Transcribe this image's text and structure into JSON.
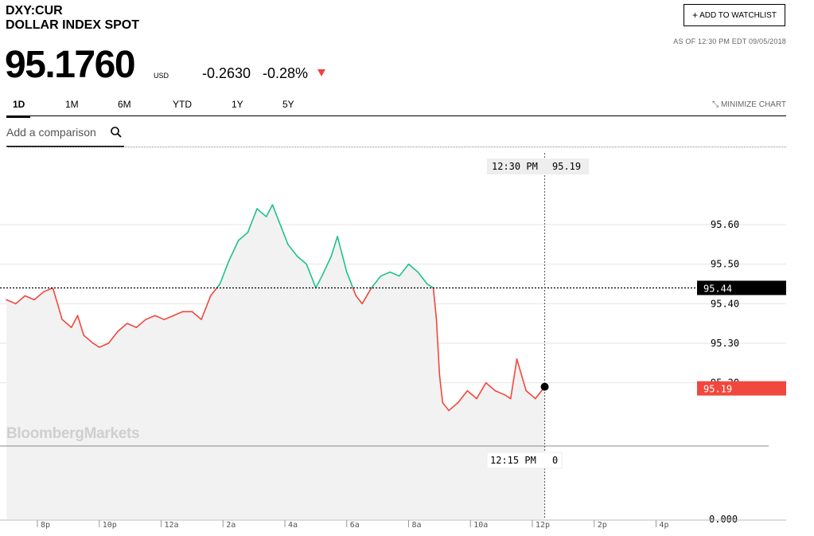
{
  "header": {
    "ticker": "DXY:CUR",
    "name": "DOLLAR INDEX SPOT",
    "watchlist_label": "ADD TO WATCHLIST",
    "as_of": "AS OF 12:30 PM EDT 09/05/2018",
    "price": "95.1760",
    "currency": "USD",
    "change": "-0.2630",
    "change_pct": "-0.28%"
  },
  "tabs": [
    {
      "label": "1D",
      "active": true
    },
    {
      "label": "1M",
      "active": false
    },
    {
      "label": "6M",
      "active": false
    },
    {
      "label": "YTD",
      "active": false
    },
    {
      "label": "1Y",
      "active": false
    },
    {
      "label": "5Y",
      "active": false
    }
  ],
  "minimize_label": "MINIMIZE CHART",
  "comparison_placeholder": "Add a comparison",
  "watermark": "BloombergMarkets",
  "colors": {
    "up": "#1fc28a",
    "down": "#f0483e",
    "area": "#f2f2f2"
  },
  "chart_data": {
    "type": "line",
    "previous_close": 95.44,
    "last_value": 95.19,
    "crosshair": {
      "time": "12:30 PM",
      "value": "95.19",
      "volume_time": "12:15 PM",
      "volume": "0"
    },
    "yticks": [
      95.6,
      95.5,
      95.4,
      95.3
    ],
    "ytick_labels": [
      "95.60",
      "95.50",
      "95.40",
      "95.30"
    ],
    "volume_tick": "0.000",
    "prev_close_label": "95.44",
    "last_label": "95.19",
    "partial_tick_label": "95.20",
    "xticks": [
      "8p",
      "10p",
      "12a",
      "2a",
      "4a",
      "6a",
      "8a",
      "10a",
      "12p",
      "2p",
      "4p"
    ],
    "xtick_hours": [
      20,
      22,
      24,
      26,
      28,
      30,
      32,
      34,
      36,
      38,
      40
    ],
    "series": [
      {
        "x": [
          19.0,
          19.3,
          19.6,
          19.9,
          20.2,
          20.5,
          20.8,
          21.1,
          21.3,
          21.5,
          21.8,
          22.0,
          22.3,
          22.6,
          22.9,
          23.2,
          23.5,
          23.8,
          24.1,
          24.4,
          24.7,
          25.0,
          25.3,
          25.6,
          25.9,
          26.2,
          26.5,
          26.8,
          27.1,
          27.4,
          27.6,
          27.8,
          28.1,
          28.4,
          28.7,
          29.0,
          29.2,
          29.5,
          29.7,
          30.0,
          30.3,
          30.5,
          30.8,
          31.1,
          31.4,
          31.7,
          32.0,
          32.3,
          32.6,
          32.8,
          32.9,
          33.0,
          33.1,
          33.3,
          33.6,
          33.9,
          34.2,
          34.5,
          34.8,
          35.1,
          35.3,
          35.5,
          35.8,
          36.1,
          36.4
        ],
        "y": [
          95.41,
          95.4,
          95.42,
          95.41,
          95.43,
          95.44,
          95.36,
          95.34,
          95.37,
          95.32,
          95.3,
          95.29,
          95.3,
          95.33,
          95.35,
          95.34,
          95.36,
          95.37,
          95.36,
          95.37,
          95.38,
          95.38,
          95.36,
          95.42,
          95.45,
          95.51,
          95.56,
          95.58,
          95.64,
          95.62,
          95.65,
          95.61,
          95.55,
          95.52,
          95.5,
          95.44,
          95.47,
          95.52,
          95.57,
          95.48,
          95.42,
          95.4,
          95.44,
          95.47,
          95.48,
          95.47,
          95.5,
          95.48,
          95.45,
          95.44,
          95.36,
          95.22,
          95.15,
          95.13,
          95.15,
          95.18,
          95.16,
          95.2,
          95.18,
          95.17,
          95.16,
          95.26,
          95.18,
          95.16,
          95.19
        ]
      }
    ]
  }
}
